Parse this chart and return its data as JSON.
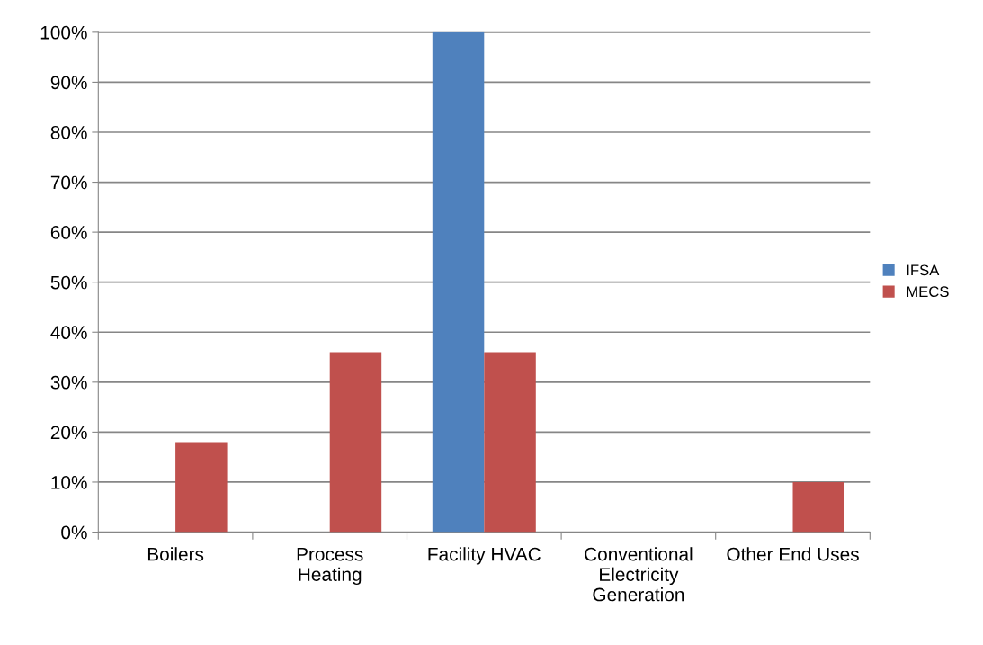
{
  "chart_data": {
    "type": "bar",
    "categories": [
      "Boilers",
      "Process\nHeating",
      "Facility HVAC",
      "Conventional\nElectricity\nGeneration",
      "Other End Uses"
    ],
    "series": [
      {
        "name": "IFSA",
        "color": "#4f81bd",
        "values": [
          0,
          0,
          100,
          0,
          0
        ]
      },
      {
        "name": "MECS",
        "color": "#c0504d",
        "values": [
          18,
          36,
          36,
          0,
          10
        ]
      }
    ],
    "ylim": [
      0,
      100
    ],
    "yticks": [
      {
        "value": 0,
        "label": "0%"
      },
      {
        "value": 10,
        "label": "10%"
      },
      {
        "value": 20,
        "label": "20%"
      },
      {
        "value": 30,
        "label": "30%"
      },
      {
        "value": 40,
        "label": "40%"
      },
      {
        "value": 50,
        "label": "50%"
      },
      {
        "value": 60,
        "label": "60%"
      },
      {
        "value": 70,
        "label": "70%"
      },
      {
        "value": 80,
        "label": "80%"
      },
      {
        "value": 90,
        "label": "90%"
      },
      {
        "value": 100,
        "label": "100%"
      }
    ],
    "grid": "y",
    "legend": "right"
  }
}
